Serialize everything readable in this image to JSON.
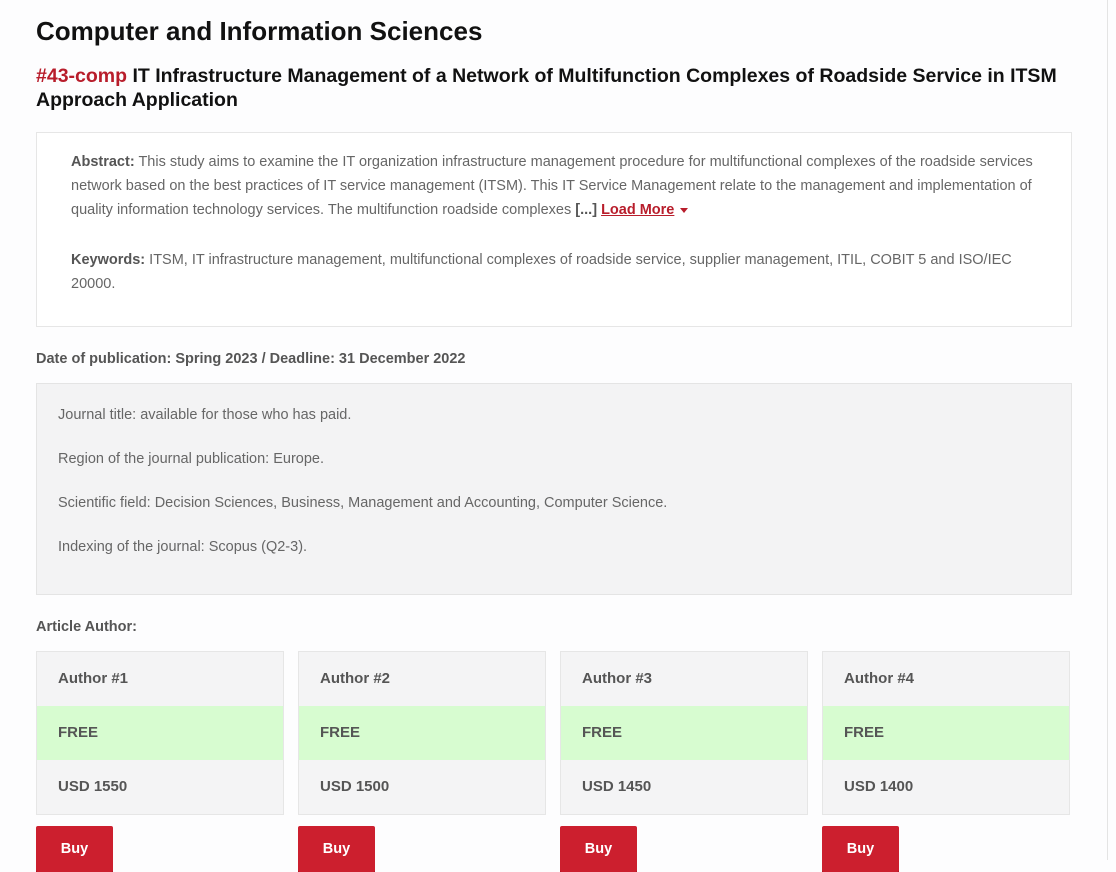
{
  "section_title": "Computer and Information Sciences",
  "article": {
    "code": "#43-comp",
    "title": "IT Infrastructure Management of a Network of Multifunction Complexes of Roadside Service in ITSM Approach Application"
  },
  "abstract": {
    "label": "Abstract:",
    "text": "This study aims to examine the IT organization infrastructure management procedure for multifunctional complexes of the roadside services network based on the best practices of IT service management (ITSM). This IT Service Management relate to the management and implementation of quality information technology services. The multifunction roadside complexes",
    "ellipsis": "[...]",
    "load_more": "Load More"
  },
  "keywords": {
    "label": "Keywords:",
    "text": "ITSM, IT infrastructure management, multifunctional complexes of roadside service, supplier management, ITIL, COBIT 5 and ISO/IEC 20000."
  },
  "date_line": "Date of publication: Spring 2023 / Deadline: 31 December 2022",
  "info": [
    "Journal title: available for those who has paid.",
    "Region of the journal publication: Europe.",
    "Scientific field: Decision Sciences, Business, Management and Accounting, Computer Science.",
    "Indexing of the journal: Scopus (Q2-3)."
  ],
  "authors_label": "Article Author:",
  "authors": [
    {
      "name": "Author #1",
      "status": "FREE",
      "price": "USD 1550",
      "buy": "Buy"
    },
    {
      "name": "Author #2",
      "status": "FREE",
      "price": "USD 1500",
      "buy": "Buy"
    },
    {
      "name": "Author #3",
      "status": "FREE",
      "price": "USD 1450",
      "buy": "Buy"
    },
    {
      "name": "Author #4",
      "status": "FREE",
      "price": "USD 1400",
      "buy": "Buy"
    }
  ],
  "colors": {
    "accent": "#cc1f2e",
    "free_bg": "#d7fcd0"
  }
}
